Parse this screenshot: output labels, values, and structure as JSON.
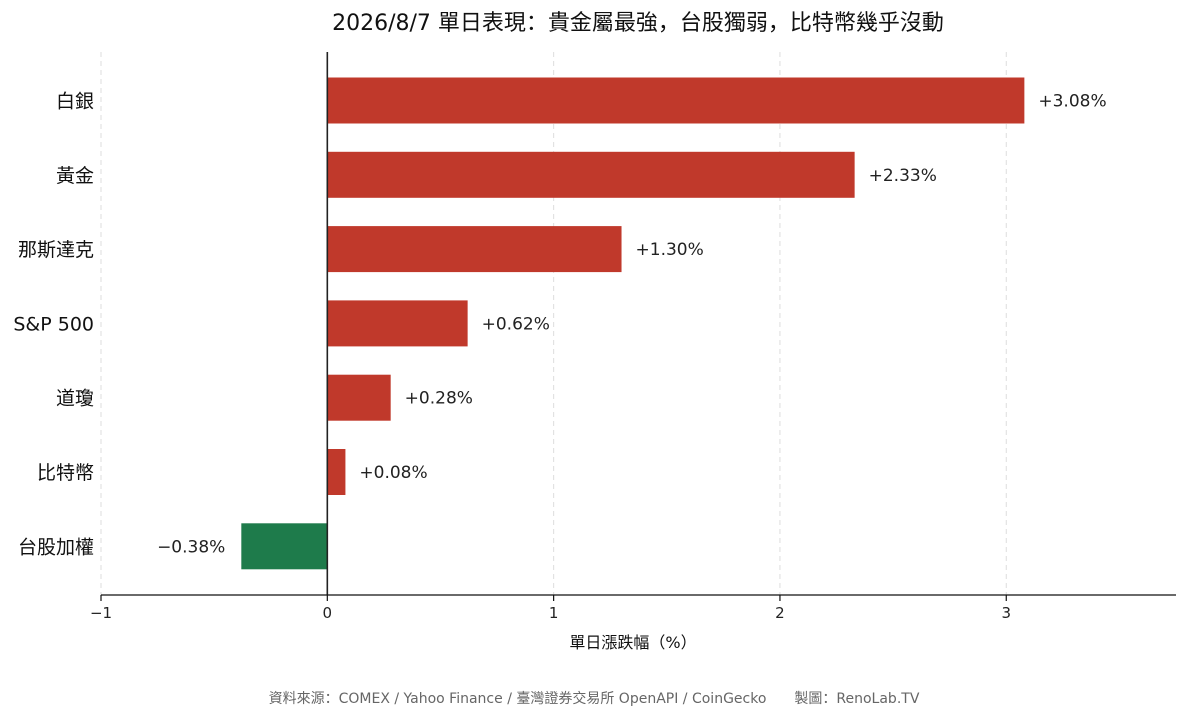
{
  "chart_data": {
    "type": "bar",
    "orientation": "horizontal",
    "title": "2026/8/7 單日表現：貴金屬最強，台股獨弱，比特幣幾乎沒動",
    "xlabel": "單日漲跌幅（%）",
    "ylabel": "",
    "categories": [
      "白銀",
      "黃金",
      "那斯達克",
      "S&P 500",
      "道瓊",
      "比特幣",
      "台股加權"
    ],
    "values": [
      3.08,
      2.33,
      1.3,
      0.62,
      0.28,
      0.08,
      -0.38
    ],
    "value_labels": [
      "+3.08%",
      "+2.33%",
      "+1.30%",
      "+0.62%",
      "+0.28%",
      "+0.08%",
      "−0.38%"
    ],
    "xlim": [
      -1,
      3.75
    ],
    "xticks": [
      -1,
      0,
      1,
      2,
      3
    ],
    "xtick_labels": [
      "−1",
      "0",
      "1",
      "2",
      "3"
    ],
    "grid": "vertical dashed",
    "colors": {
      "positive": "#c0392b",
      "negative": "#1e7b4b",
      "zero_line": "#222222",
      "grid": "#dddddd"
    },
    "source_note": "資料來源：COMEX / Yahoo Finance / 臺灣證券交易所 OpenAPI / CoinGecko　　製圖：RenoLab.TV"
  }
}
